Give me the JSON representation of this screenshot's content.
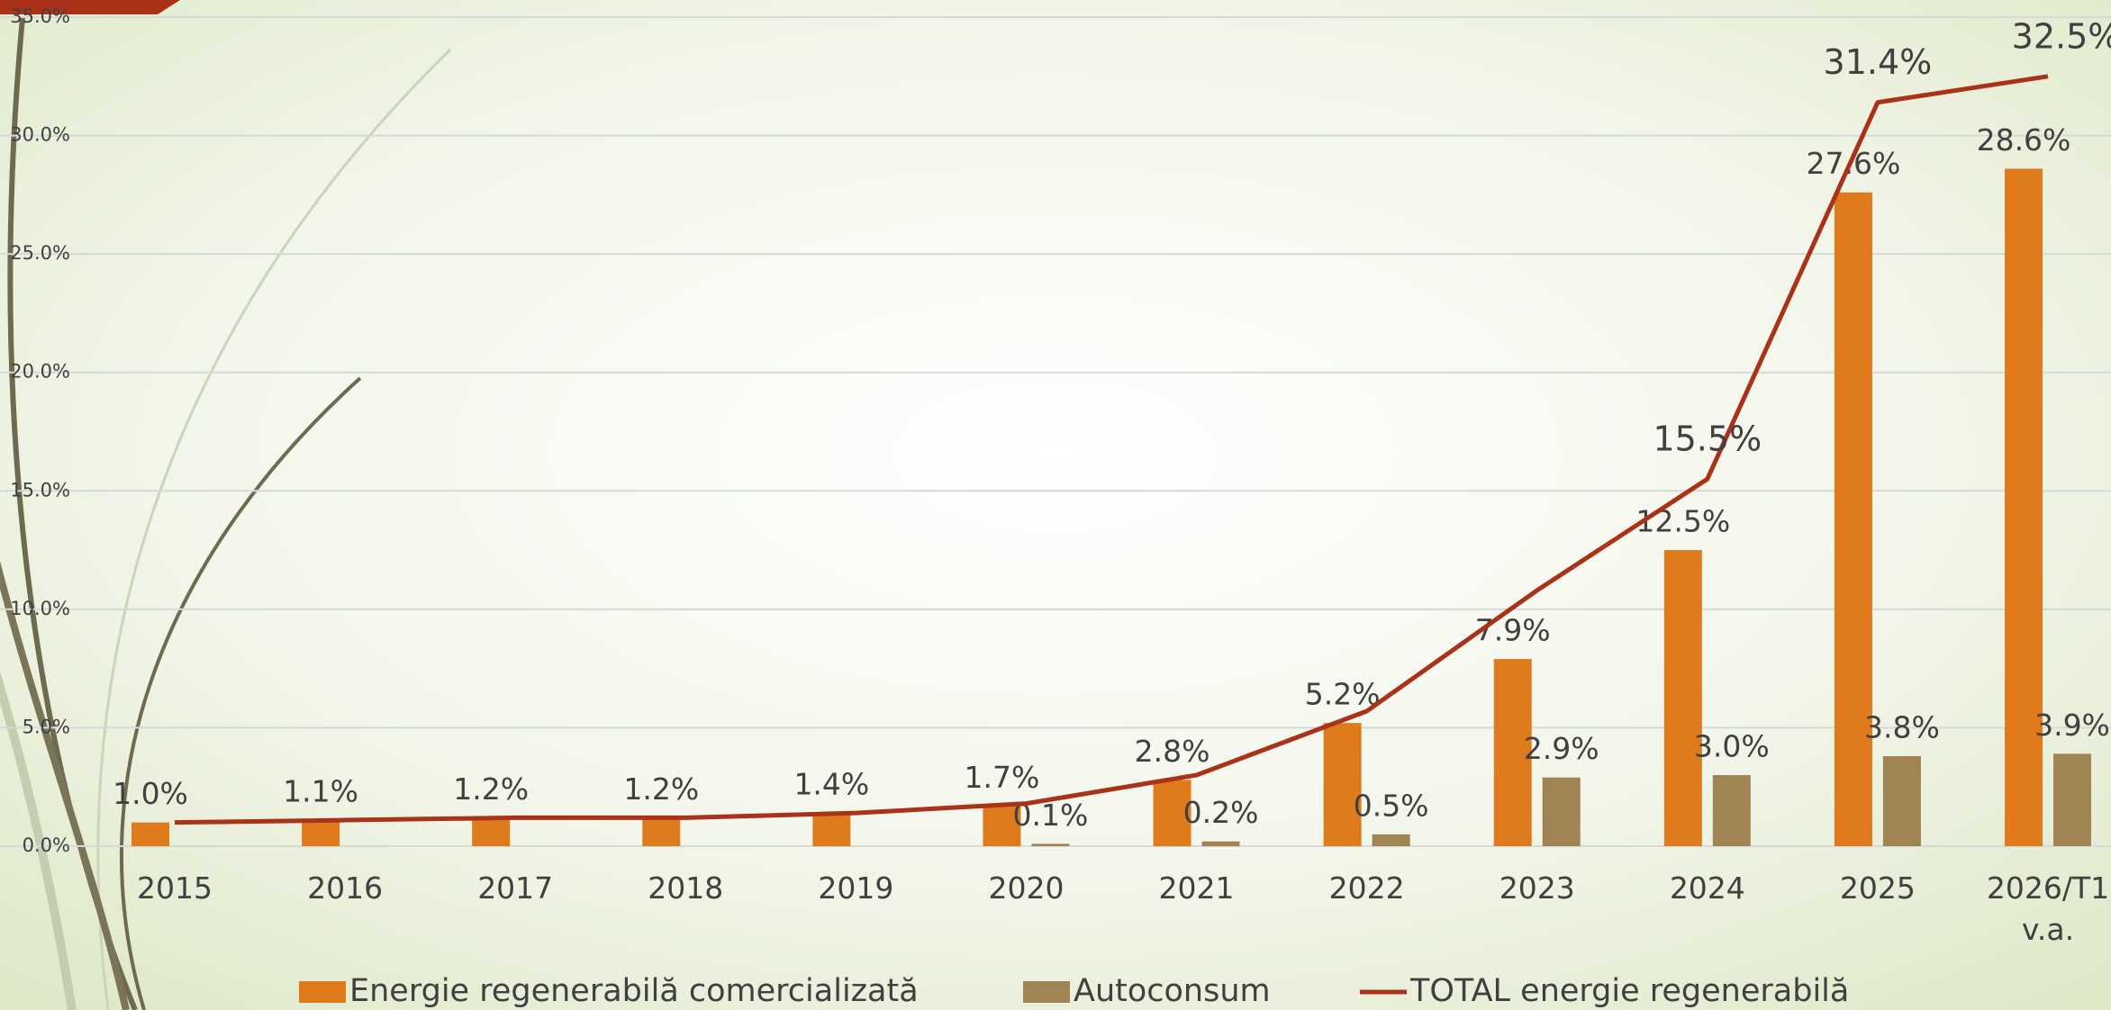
{
  "chart_data": {
    "type": "bar",
    "categories": [
      "2015",
      "2016",
      "2017",
      "2018",
      "2019",
      "2020",
      "2021",
      "2022",
      "2023",
      "2024",
      "2025",
      "2026/T1 v.a."
    ],
    "series": [
      {
        "name": "Energie regenerabilă comercializată",
        "type": "bar",
        "color": "#e07b1d",
        "values": [
          1.0,
          1.1,
          1.2,
          1.2,
          1.4,
          1.7,
          2.8,
          5.2,
          7.9,
          12.5,
          27.6,
          28.6
        ],
        "value_labels": [
          "1.0%",
          "1.1%",
          "1.2%",
          "1.2%",
          "1.4%",
          "1.7%",
          "2.8%",
          "5.2%",
          "7.9%",
          "12.5%",
          "27.6%",
          "28.6%"
        ]
      },
      {
        "name": "Autoconsum",
        "type": "bar",
        "color": "#a08453",
        "values": [
          null,
          null,
          null,
          null,
          null,
          0.1,
          0.2,
          0.5,
          2.9,
          3.0,
          3.8,
          3.9
        ],
        "value_labels": [
          null,
          null,
          null,
          null,
          null,
          "0.1%",
          "0.2%",
          "0.5%",
          "2.9%",
          "3.0%",
          "3.8%",
          "3.9%"
        ]
      },
      {
        "name": "TOTAL energie regenerabilă",
        "type": "line",
        "color": "#a93218",
        "values": [
          1.0,
          1.1,
          1.2,
          1.2,
          1.4,
          1.8,
          3.0,
          5.7,
          10.8,
          15.5,
          31.4,
          32.5
        ],
        "value_labels": [
          null,
          null,
          null,
          null,
          null,
          null,
          null,
          null,
          null,
          "15.5%",
          "31.4%",
          "32.5%"
        ]
      }
    ],
    "ylim": [
      0,
      35
    ],
    "yticks": [
      {
        "value": 0,
        "label": "0.0%"
      },
      {
        "value": 5,
        "label": "5.0%"
      },
      {
        "value": 10,
        "label": "10.0%"
      },
      {
        "value": 15,
        "label": "15.0%"
      },
      {
        "value": 20,
        "label": "20.0%"
      },
      {
        "value": 25,
        "label": "25.0%"
      },
      {
        "value": 30,
        "label": "30.0%"
      },
      {
        "value": 35,
        "label": "35.0%"
      }
    ],
    "grid": true,
    "legend": "bottom"
  }
}
